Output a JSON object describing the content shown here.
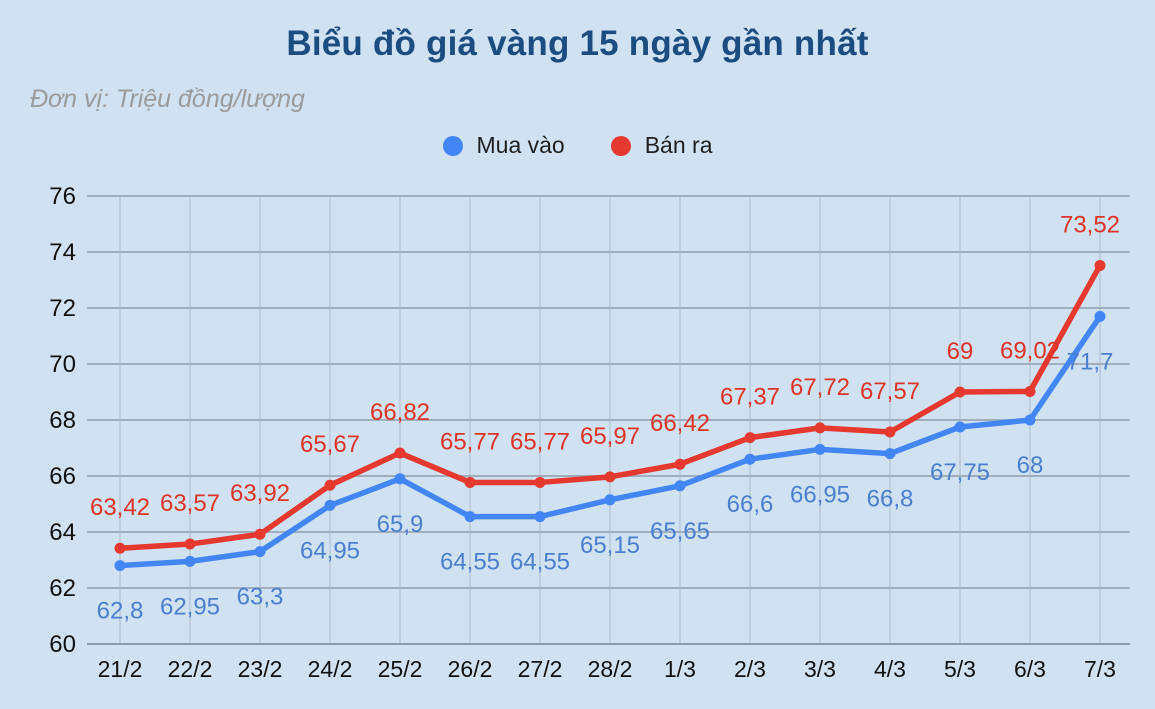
{
  "page": {
    "background": "#d0e1f2"
  },
  "header": {
    "title": "Biểu đồ giá vàng 15 ngày gần nhất",
    "subtitle": "Đơn vị: Triệu đồng/lượng"
  },
  "legend": {
    "items": [
      {
        "label": "Mua vào",
        "color": "#4285f4"
      },
      {
        "label": "Bán ra",
        "color": "#e5392f"
      }
    ]
  },
  "chart_data": {
    "type": "line",
    "title": "Biểu đồ giá vàng 15 ngày gần nhất",
    "unit_note": "Đơn vị: Triệu đồng/lượng",
    "categories": [
      "21/2",
      "22/2",
      "23/2",
      "24/2",
      "25/2",
      "26/2",
      "27/2",
      "28/2",
      "1/3",
      "2/3",
      "3/3",
      "4/3",
      "5/3",
      "6/3",
      "7/3"
    ],
    "series": [
      {
        "name": "Mua vào",
        "color": "#4285f4",
        "label_color": "#4a7fd0",
        "values": [
          62.8,
          62.95,
          63.3,
          64.95,
          65.9,
          64.55,
          64.55,
          65.15,
          65.65,
          66.6,
          66.95,
          66.8,
          67.75,
          68,
          71.7
        ],
        "labels": [
          "62,8",
          "62,95",
          "63,3",
          "64,95",
          "65,9",
          "64,55",
          "64,55",
          "65,15",
          "65,65",
          "66,6",
          "66,95",
          "66,8",
          "67,75",
          "68",
          "71,7"
        ],
        "label_side": "below"
      },
      {
        "name": "Bán ra",
        "color": "#e5392f",
        "label_color": "#dd3428",
        "values": [
          63.42,
          63.57,
          63.92,
          65.67,
          66.82,
          65.77,
          65.77,
          65.97,
          66.42,
          67.37,
          67.72,
          67.57,
          69,
          69.02,
          73.52
        ],
        "labels": [
          "63,42",
          "63,57",
          "63,92",
          "65,67",
          "66,82",
          "65,77",
          "65,77",
          "65,97",
          "66,42",
          "67,37",
          "67,72",
          "67,57",
          "69",
          "69,02",
          "73,52"
        ],
        "label_side": "above"
      }
    ],
    "ylim": [
      60,
      76
    ],
    "yticks": [
      60,
      62,
      64,
      66,
      68,
      70,
      72,
      74,
      76
    ],
    "grid": true,
    "legend_position": "top",
    "axis_text_color": "#111111",
    "gridline_color": "#9fadbd",
    "vertical_gridline_color": "#b7c6d6"
  }
}
